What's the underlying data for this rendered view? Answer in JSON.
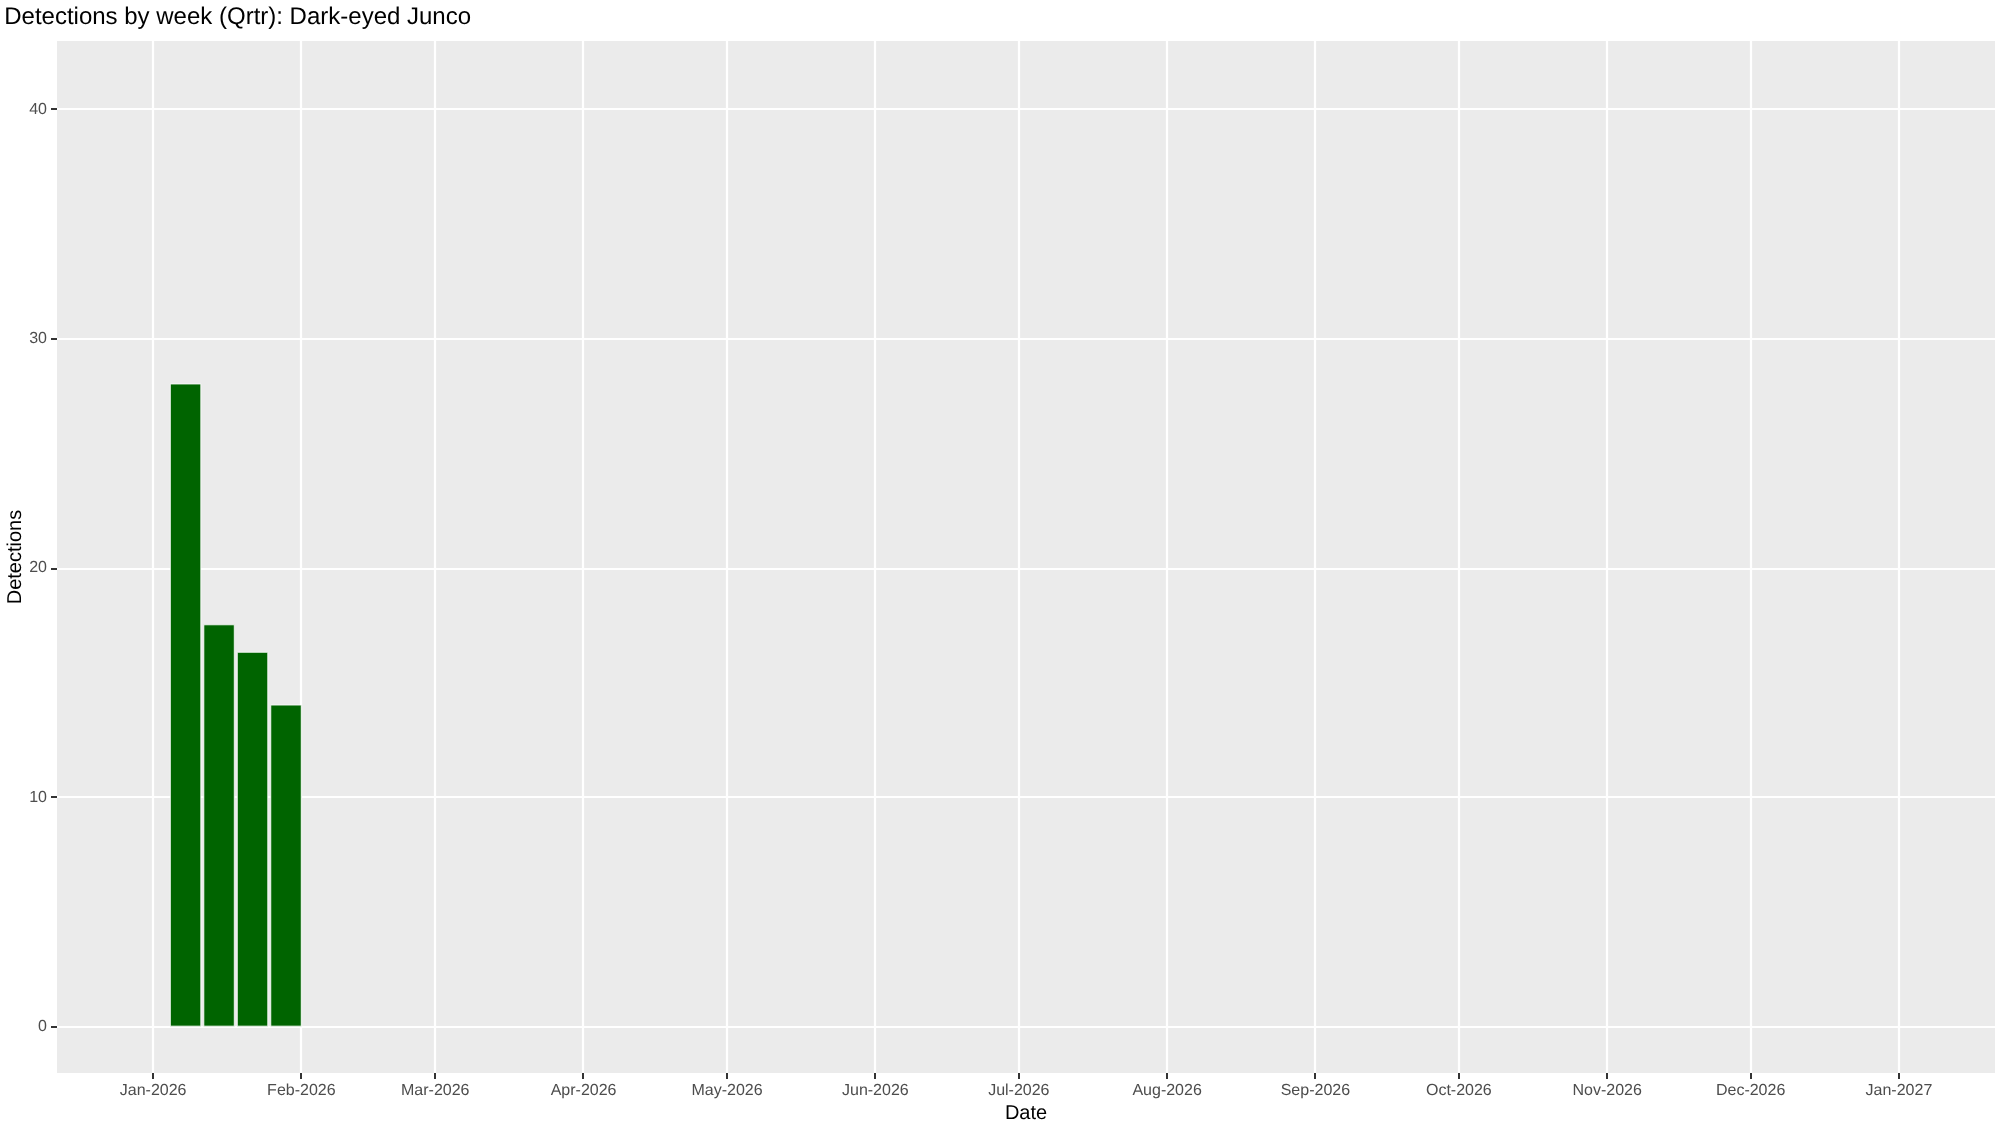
{
  "chart_data": {
    "type": "bar",
    "title": "Detections by week (Qrtr): Dark-eyed Junco",
    "xlabel": "Date",
    "ylabel": "Detections",
    "x": [
      "2026-01-08",
      "2026-01-15",
      "2026-01-22",
      "2026-01-29"
    ],
    "values": [
      28,
      17.5,
      16.3,
      14
    ],
    "color": "#006400",
    "xlim": [
      "2025-12-14",
      "2027-01-19"
    ],
    "xticks": [
      {
        "value": "2026-01-01",
        "label": "Jan-2026"
      },
      {
        "value": "2026-02-01",
        "label": "Feb-2026"
      },
      {
        "value": "2026-03-01",
        "label": "Mar-2026"
      },
      {
        "value": "2026-04-01",
        "label": "Apr-2026"
      },
      {
        "value": "2026-05-01",
        "label": "May-2026"
      },
      {
        "value": "2026-06-01",
        "label": "Jun-2026"
      },
      {
        "value": "2026-07-01",
        "label": "Jul-2026"
      },
      {
        "value": "2026-08-01",
        "label": "Aug-2026"
      },
      {
        "value": "2026-09-01",
        "label": "Sep-2026"
      },
      {
        "value": "2026-10-01",
        "label": "Oct-2026"
      },
      {
        "value": "2026-11-01",
        "label": "Nov-2026"
      },
      {
        "value": "2026-12-01",
        "label": "Dec-2026"
      },
      {
        "value": "2027-01-01",
        "label": "Jan-2027"
      }
    ],
    "ylim": [
      -2,
      43
    ],
    "yticks": [
      0,
      10,
      20,
      30,
      40
    ],
    "grid": true
  }
}
